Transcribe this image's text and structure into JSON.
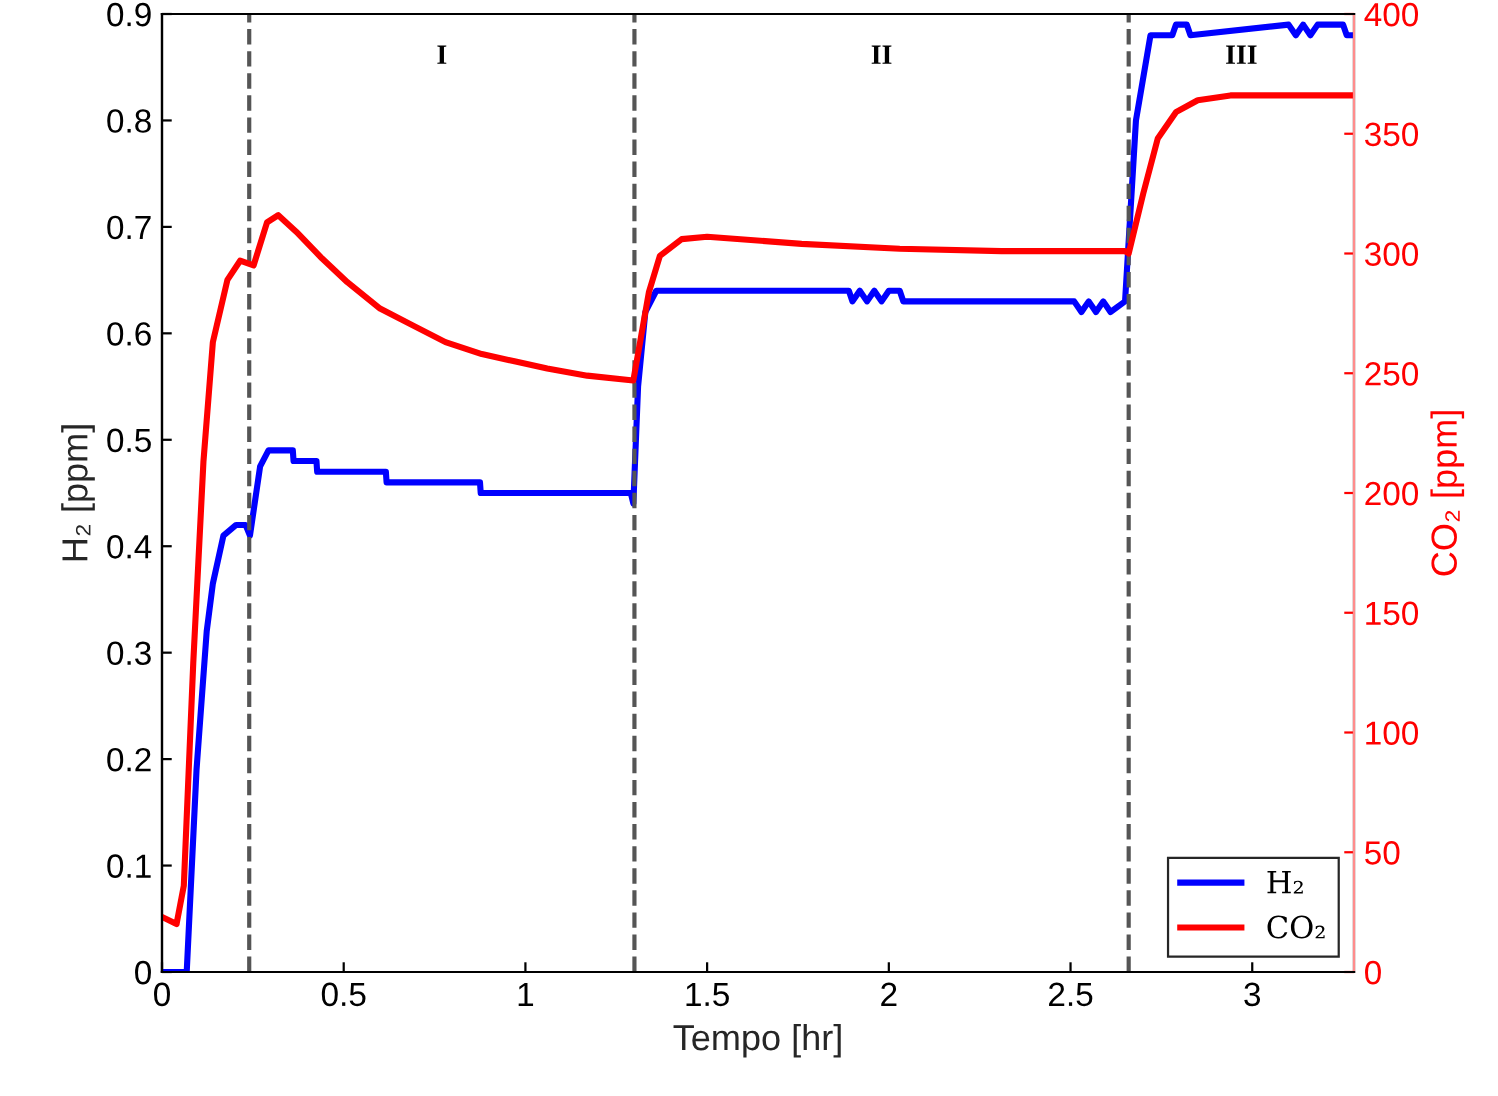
{
  "chart_data": {
    "type": "line",
    "xlabel": "Tempo [hr]",
    "ylabel": "H₂ [ppm]",
    "y2label": "CO₂ [ppm]",
    "xlim": [
      0,
      3.28
    ],
    "xticks": [
      0,
      0.5,
      1,
      1.5,
      2,
      2.5,
      3
    ],
    "ylim": [
      0,
      0.9
    ],
    "yticks": [
      0,
      0.1,
      0.2,
      0.3,
      0.4,
      0.5,
      0.6,
      0.7,
      0.8,
      0.9
    ],
    "y2lim": [
      0,
      400
    ],
    "y2ticks": [
      0,
      50,
      100,
      150,
      200,
      250,
      300,
      350,
      400
    ],
    "grid": false,
    "legend": "bottom right",
    "marker": "none",
    "line_style": "solid",
    "series": [
      {
        "name": "H₂",
        "color": "#0000ff",
        "x": [
          0,
          0.068,
          0.095,
          0.123,
          0.14,
          0.169,
          0.204,
          0.23,
          0.242,
          0.27,
          0.293,
          0.36,
          0.362,
          0.425,
          0.427,
          0.616,
          0.618,
          0.875,
          0.877,
          1.29,
          1.297,
          1.31,
          1.33,
          1.36,
          1.89,
          1.9,
          1.92,
          1.94,
          1.96,
          1.98,
          2.0,
          2.03,
          2.04,
          2.51,
          2.53,
          2.55,
          2.57,
          2.59,
          2.61,
          2.65,
          2.68,
          2.72,
          2.78,
          2.79,
          2.82,
          2.83,
          3.1,
          3.12,
          3.14,
          3.16,
          3.18,
          3.2,
          3.25,
          3.26,
          3.28
        ],
        "values": [
          0,
          0,
          0.19,
          0.32,
          0.365,
          0.41,
          0.42,
          0.42,
          0.41,
          0.475,
          0.49,
          0.49,
          0.48,
          0.48,
          0.47,
          0.47,
          0.46,
          0.46,
          0.45,
          0.45,
          0.44,
          0.55,
          0.62,
          0.64,
          0.64,
          0.63,
          0.64,
          0.63,
          0.64,
          0.63,
          0.64,
          0.64,
          0.63,
          0.63,
          0.62,
          0.63,
          0.62,
          0.63,
          0.62,
          0.63,
          0.8,
          0.88,
          0.88,
          0.89,
          0.89,
          0.88,
          0.89,
          0.88,
          0.89,
          0.88,
          0.89,
          0.89,
          0.89,
          0.88,
          0.88
        ]
      },
      {
        "name": "CO₂",
        "color": "#ff0000",
        "axis": "y2",
        "x": [
          0,
          0.04,
          0.06,
          0.086,
          0.114,
          0.14,
          0.18,
          0.215,
          0.252,
          0.289,
          0.32,
          0.37,
          0.44,
          0.51,
          0.6,
          0.69,
          0.78,
          0.88,
          0.97,
          1.06,
          1.17,
          1.297,
          1.34,
          1.37,
          1.43,
          1.5,
          1.76,
          2.03,
          2.31,
          2.65,
          2.66,
          2.7,
          2.74,
          2.79,
          2.85,
          2.94,
          3.28
        ],
        "values": [
          23,
          20,
          36,
          129,
          213,
          263,
          289,
          297,
          295,
          313,
          316,
          309,
          298,
          288,
          277,
          270,
          263,
          258,
          255,
          252,
          249,
          247,
          284,
          299,
          306,
          307,
          304,
          302,
          301,
          301,
          300,
          325,
          348,
          359,
          364,
          366,
          366
        ]
      }
    ],
    "ref_lines": [
      {
        "axis": "x",
        "value": 0.24,
        "color": "#555555",
        "line_style": "dashed"
      },
      {
        "axis": "x",
        "value": 1.3,
        "color": "#555555",
        "line_style": "dashed"
      },
      {
        "axis": "x",
        "value": 2.66,
        "color": "#555555",
        "line_style": "dashed"
      }
    ],
    "annotations": [
      "I",
      "II",
      "III"
    ]
  }
}
